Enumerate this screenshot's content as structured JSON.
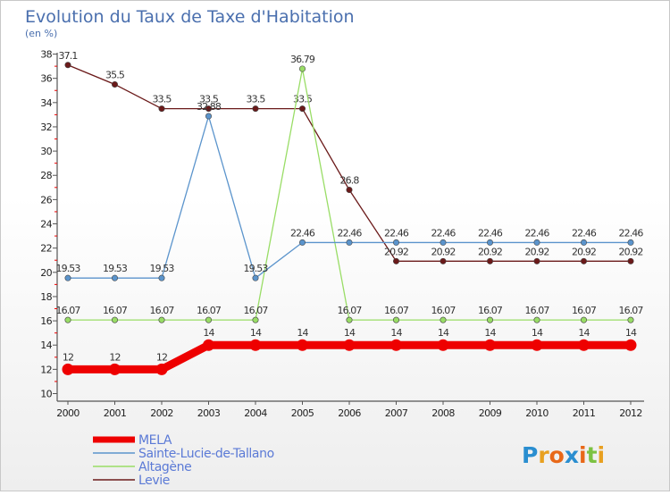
{
  "chart_data": {
    "type": "line",
    "title": "Evolution du Taux de Taxe d'Habitation",
    "subtitle": "(en %)",
    "xlabel": "",
    "ylabel": "",
    "x": [
      "2000",
      "2001",
      "2002",
      "2003",
      "2004",
      "2005",
      "2006",
      "2007",
      "2008",
      "2009",
      "2010",
      "2011",
      "2012"
    ],
    "y_ticks": [
      "10",
      "12",
      "14",
      "16",
      "18",
      "20",
      "22",
      "24",
      "26",
      "28",
      "30",
      "32",
      "34",
      "36",
      "38"
    ],
    "ylim": [
      10,
      38
    ],
    "grid": false,
    "legend_position": "bottom-left",
    "series": [
      {
        "name": "MELA",
        "color": "#ee0000",
        "values": [
          12,
          12,
          12,
          14,
          14,
          14,
          14,
          14,
          14,
          14,
          14,
          14,
          14
        ],
        "labels": [
          "12",
          "12",
          "12",
          "14",
          "14",
          "14",
          "14",
          "14",
          "14",
          "14",
          "14",
          "14",
          "14"
        ]
      },
      {
        "name": "Sainte-Lucie-de-Tallano",
        "color": "#5b94cc",
        "values": [
          19.53,
          19.53,
          19.53,
          32.88,
          19.53,
          22.46,
          22.46,
          22.46,
          22.46,
          22.46,
          22.46,
          22.46,
          22.46
        ],
        "labels": [
          "19.53",
          "19.53",
          "19.53",
          "32.88",
          "19.53",
          "22.46",
          "22.46",
          "22.46",
          "22.46",
          "22.46",
          "22.46",
          "22.46",
          "22.46"
        ]
      },
      {
        "name": "Altagène",
        "color": "#99dd66",
        "values": [
          16.07,
          16.07,
          16.07,
          16.07,
          16.07,
          36.79,
          16.07,
          16.07,
          16.07,
          16.07,
          16.07,
          16.07,
          16.07
        ],
        "labels": [
          "16.07",
          "16.07",
          "16.07",
          "16.07",
          "16.07",
          "36.79",
          "16.07",
          "16.07",
          "16.07",
          "16.07",
          "16.07",
          "16.07",
          "16.07"
        ]
      },
      {
        "name": "Levie",
        "color": "#6b1a1a",
        "values": [
          37.1,
          35.5,
          33.5,
          33.5,
          33.5,
          33.5,
          26.8,
          20.92,
          20.92,
          20.92,
          20.92,
          20.92,
          20.92
        ],
        "labels": [
          "37.1",
          "35.5",
          "33.5",
          "33.5",
          "33.5",
          "33.5",
          "26.8",
          "20.92",
          "20.92",
          "20.92",
          "20.92",
          "20.92",
          "20.92"
        ]
      }
    ]
  },
  "logo": {
    "text": "Proxiti",
    "letters": [
      "P",
      "r",
      "o",
      "x",
      "i",
      "t",
      "i"
    ],
    "colors": [
      "#2a8ed0",
      "#e8a020",
      "#e86818",
      "#2a8ed0",
      "#e86818",
      "#7cc242",
      "#e8a020"
    ]
  }
}
